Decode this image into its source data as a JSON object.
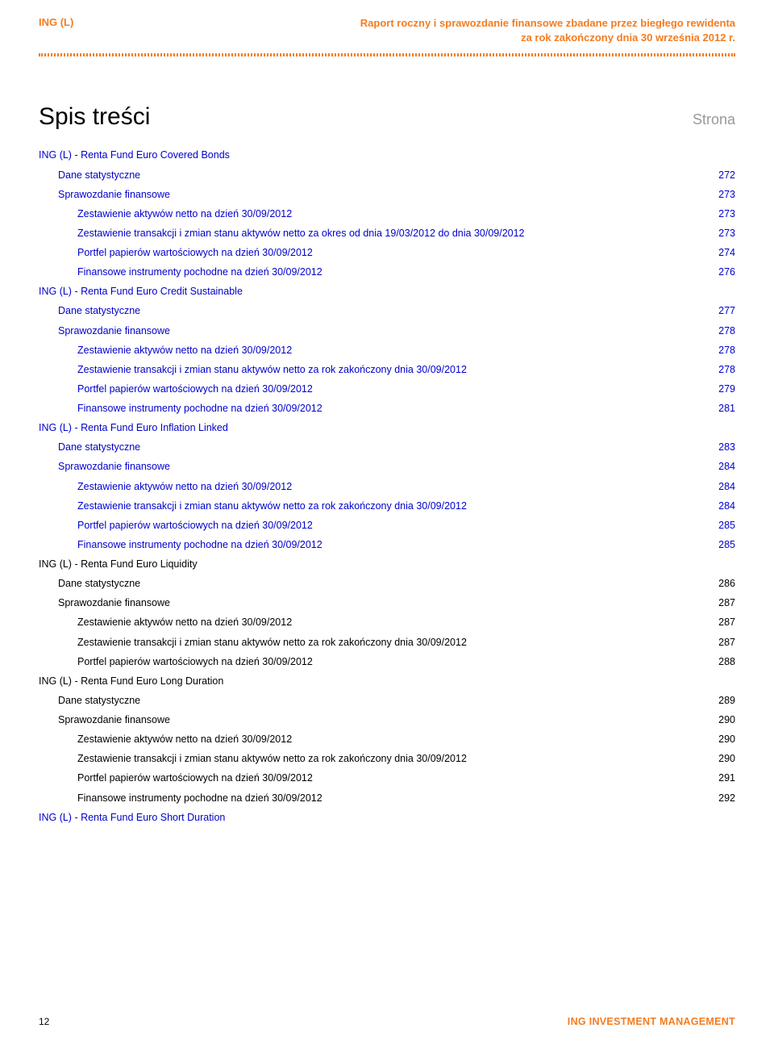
{
  "colors": {
    "accent": "#f47c20",
    "link": "#0000cc",
    "text": "#000000",
    "muted": "#999999",
    "background": "#ffffff"
  },
  "typography": {
    "body_family": "Arial",
    "body_size_pt": 9.5,
    "title_size_pt": 22,
    "strona_size_pt": 14,
    "header_size_pt": 10,
    "footer_size_pt": 9
  },
  "header": {
    "left": "ING (L)",
    "right_line1": "Raport roczny i sprawozdanie finansowe zbadane przez biegłego rewidenta",
    "right_line2": "za rok zakończony dnia 30 września 2012 r."
  },
  "title": "Spis treści",
  "strona_label": "Strona",
  "toc": [
    {
      "indent": 0,
      "style": "link",
      "label": "ING (L) - Renta Fund Euro Covered Bonds",
      "page": ""
    },
    {
      "indent": 1,
      "style": "link",
      "label": "Dane statystyczne",
      "page": "272"
    },
    {
      "indent": 1,
      "style": "link",
      "label": "Sprawozdanie finansowe",
      "page": "273"
    },
    {
      "indent": 2,
      "style": "link",
      "label": "Zestawienie aktywów netto na dzień 30/09/2012",
      "page": "273"
    },
    {
      "indent": 2,
      "style": "link",
      "label": "Zestawienie transakcji i zmian stanu aktywów netto za okres od dnia 19/03/2012 do dnia 30/09/2012",
      "page": "273"
    },
    {
      "indent": 2,
      "style": "link",
      "label": "Portfel papierów wartościowych na dzień 30/09/2012",
      "page": "274"
    },
    {
      "indent": 2,
      "style": "link",
      "label": "Finansowe instrumenty pochodne na dzień 30/09/2012",
      "page": "276"
    },
    {
      "indent": 0,
      "style": "link",
      "label": "ING (L) - Renta Fund Euro Credit Sustainable",
      "page": ""
    },
    {
      "indent": 1,
      "style": "link",
      "label": "Dane statystyczne",
      "page": "277"
    },
    {
      "indent": 1,
      "style": "link",
      "label": "Sprawozdanie finansowe",
      "page": "278"
    },
    {
      "indent": 2,
      "style": "link",
      "label": "Zestawienie aktywów netto na dzień 30/09/2012",
      "page": "278"
    },
    {
      "indent": 2,
      "style": "link",
      "label": "Zestawienie transakcji i zmian stanu aktywów netto za rok zakończony dnia 30/09/2012",
      "page": "278"
    },
    {
      "indent": 2,
      "style": "link",
      "label": "Portfel papierów wartościowych na dzień 30/09/2012",
      "page": "279"
    },
    {
      "indent": 2,
      "style": "link",
      "label": "Finansowe instrumenty pochodne na dzień 30/09/2012",
      "page": "281"
    },
    {
      "indent": 0,
      "style": "link",
      "label": "ING (L) - Renta Fund Euro Inflation Linked",
      "page": ""
    },
    {
      "indent": 1,
      "style": "link",
      "label": "Dane statystyczne",
      "page": "283"
    },
    {
      "indent": 1,
      "style": "link",
      "label": "Sprawozdanie finansowe",
      "page": "284"
    },
    {
      "indent": 2,
      "style": "link",
      "label": "Zestawienie aktywów netto na dzień 30/09/2012",
      "page": "284"
    },
    {
      "indent": 2,
      "style": "link",
      "label": "Zestawienie transakcji i zmian stanu aktywów netto za rok zakończony dnia 30/09/2012",
      "page": "284"
    },
    {
      "indent": 2,
      "style": "link",
      "label": "Portfel papierów wartościowych na dzień 30/09/2012",
      "page": "285"
    },
    {
      "indent": 2,
      "style": "link",
      "label": "Finansowe instrumenty pochodne na dzień 30/09/2012",
      "page": "285"
    },
    {
      "indent": 0,
      "style": "txt",
      "label": "ING (L) - Renta Fund Euro Liquidity",
      "page": ""
    },
    {
      "indent": 1,
      "style": "txt",
      "label": "Dane statystyczne",
      "page": "286"
    },
    {
      "indent": 1,
      "style": "txt",
      "label": "Sprawozdanie finansowe",
      "page": "287"
    },
    {
      "indent": 2,
      "style": "txt",
      "label": "Zestawienie aktywów netto na dzień 30/09/2012",
      "page": "287"
    },
    {
      "indent": 2,
      "style": "txt",
      "label": "Zestawienie transakcji i zmian stanu aktywów netto za rok zakończony dnia 30/09/2012",
      "page": "287"
    },
    {
      "indent": 2,
      "style": "txt",
      "label": "Portfel papierów wartościowych na dzień 30/09/2012",
      "page": "288"
    },
    {
      "indent": 0,
      "style": "txt",
      "label": "ING (L) - Renta Fund Euro Long Duration",
      "page": ""
    },
    {
      "indent": 1,
      "style": "txt",
      "label": "Dane statystyczne",
      "page": "289"
    },
    {
      "indent": 1,
      "style": "txt",
      "label": "Sprawozdanie finansowe",
      "page": "290"
    },
    {
      "indent": 2,
      "style": "txt",
      "label": "Zestawienie aktywów netto na dzień 30/09/2012",
      "page": "290"
    },
    {
      "indent": 2,
      "style": "txt",
      "label": "Zestawienie transakcji i zmian stanu aktywów netto za rok zakończony dnia 30/09/2012",
      "page": "290"
    },
    {
      "indent": 2,
      "style": "txt",
      "label": "Portfel papierów wartościowych na dzień 30/09/2012",
      "page": "291"
    },
    {
      "indent": 2,
      "style": "txt",
      "label": "Finansowe instrumenty pochodne na dzień 30/09/2012",
      "page": "292"
    },
    {
      "indent": 0,
      "style": "link",
      "label": "ING (L) - Renta Fund Euro Short Duration",
      "page": ""
    }
  ],
  "footer": {
    "page_number": "12",
    "brand": "ING INVESTMENT MANAGEMENT"
  }
}
